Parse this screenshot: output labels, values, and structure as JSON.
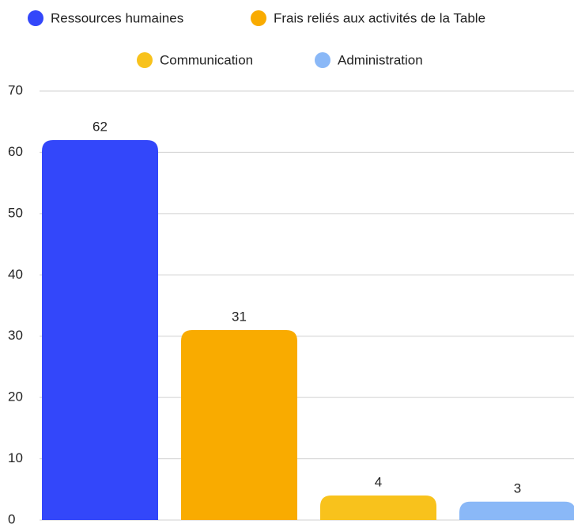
{
  "chart_data": {
    "type": "bar",
    "series": [
      {
        "name": "Ressources humaines",
        "color": "#3347fa",
        "values": [
          62
        ]
      },
      {
        "name": "Frais reliés aux activités de la Table",
        "color": "#f9ab00",
        "values": [
          31
        ]
      },
      {
        "name": "Communication",
        "color": "#f8c21c",
        "values": [
          4
        ]
      },
      {
        "name": "Administration",
        "color": "#8ab8f7",
        "values": [
          3
        ]
      }
    ],
    "ylim": [
      0,
      70
    ],
    "yticks": [
      0,
      10,
      20,
      30,
      40,
      50,
      60,
      70
    ],
    "grid": true,
    "legend": "top"
  }
}
